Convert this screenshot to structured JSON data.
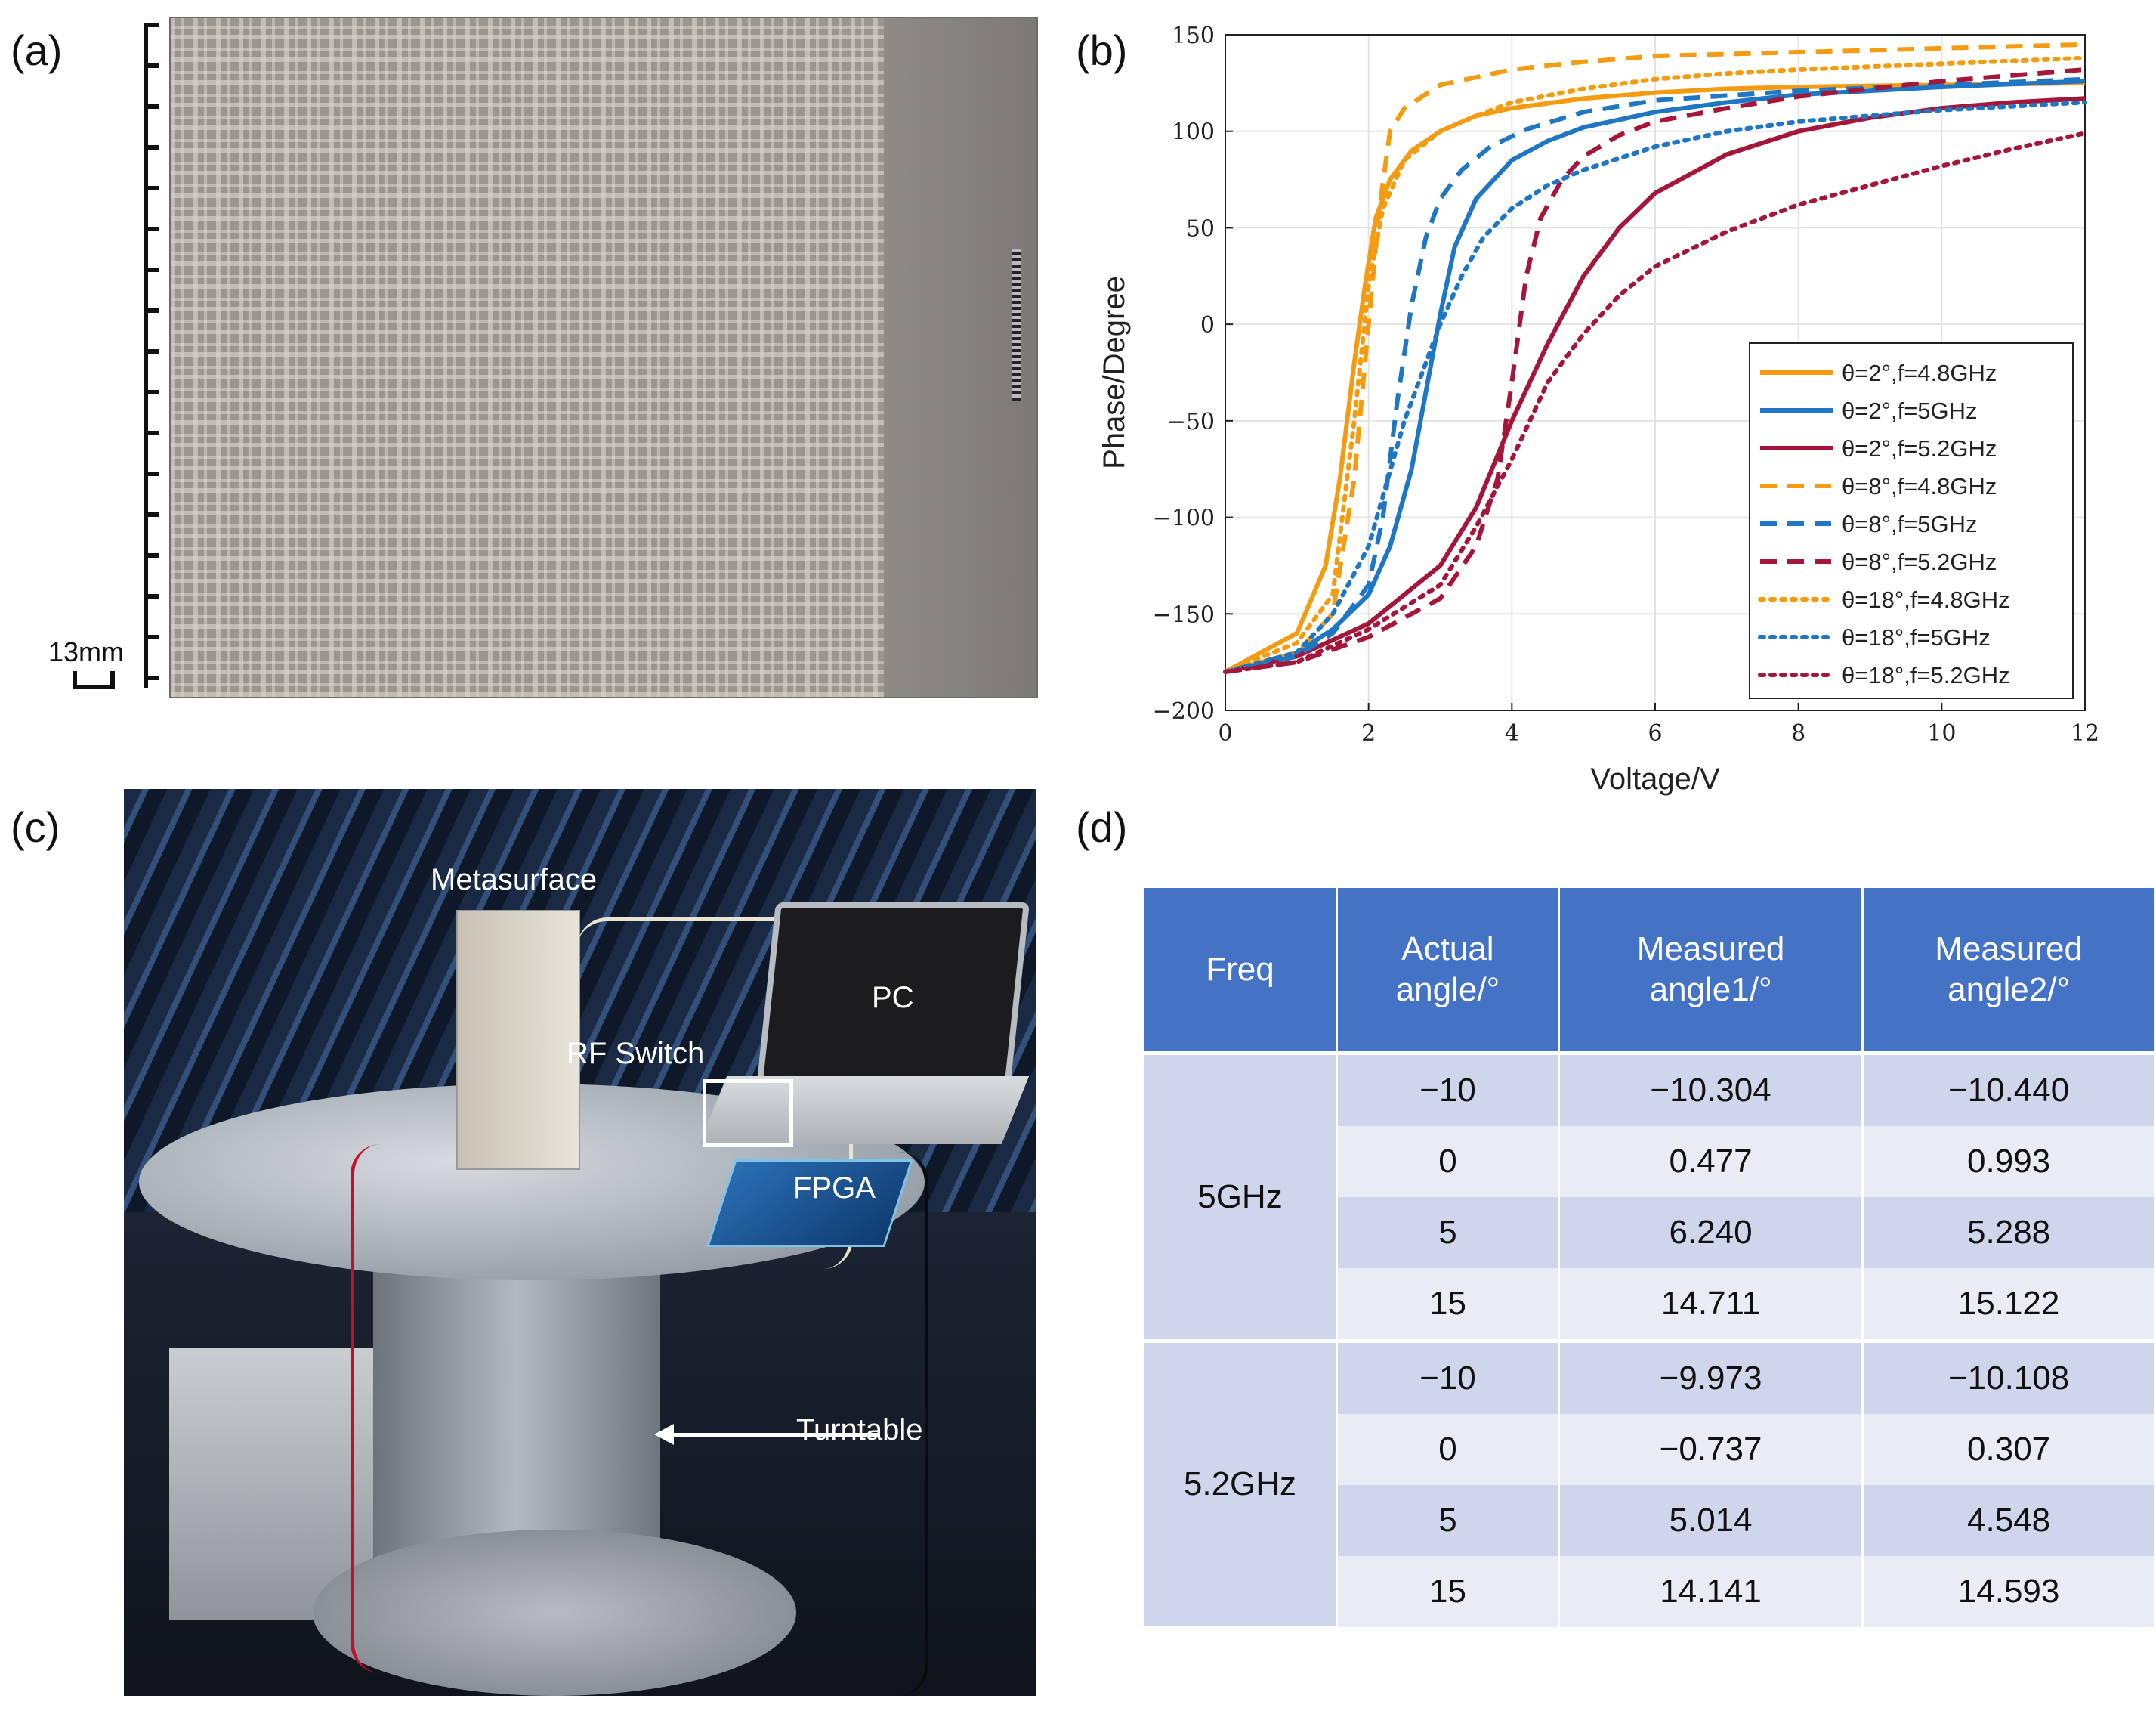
{
  "panel_labels": {
    "a": "(a)",
    "b": "(b)",
    "c": "(c)",
    "d": "(d)"
  },
  "panel_a": {
    "scale_label": "13mm"
  },
  "panel_c": {
    "labels": {
      "metasurface": "Metasurface",
      "pc": "PC",
      "rf_switch": "RF Switch",
      "fpga": "FPGA",
      "turntable": "Turntable"
    }
  },
  "panel_d": {
    "headers": [
      "Freq",
      "Actual angle/°",
      "Measured angle1/°",
      "Measured angle2/°"
    ],
    "header_lines": [
      [
        "Freq"
      ],
      [
        "Actual",
        "angle/°"
      ],
      [
        "Measured",
        "angle1/°"
      ],
      [
        "Measured",
        "angle2/°"
      ]
    ],
    "groups": [
      {
        "freq": "5GHz",
        "rows": [
          {
            "actual": "−10",
            "m1": "−10.304",
            "m2": "−10.440"
          },
          {
            "actual": "0",
            "m1": "0.477",
            "m2": "0.993"
          },
          {
            "actual": "5",
            "m1": "6.240",
            "m2": "5.288"
          },
          {
            "actual": "15",
            "m1": "14.711",
            "m2": "15.122"
          }
        ]
      },
      {
        "freq": "5.2GHz",
        "rows": [
          {
            "actual": "−10",
            "m1": "−9.973",
            "m2": "−10.108"
          },
          {
            "actual": "0",
            "m1": "−0.737",
            "m2": "0.307"
          },
          {
            "actual": "5",
            "m1": "5.014",
            "m2": "4.548"
          },
          {
            "actual": "15",
            "m1": "14.141",
            "m2": "14.593"
          }
        ]
      }
    ]
  },
  "chart_data": {
    "type": "line",
    "title": "",
    "xlabel": "Voltage/V",
    "ylabel": "Phase/Degree",
    "xlim": [
      0,
      12
    ],
    "ylim": [
      -200,
      150
    ],
    "xticks": [
      0,
      2,
      4,
      6,
      8,
      10,
      12
    ],
    "yticks": [
      -200,
      -150,
      -100,
      -50,
      0,
      50,
      100,
      150
    ],
    "ytick_labels": [
      "−200",
      "−150",
      "−100",
      "−50",
      "0",
      "50",
      "100",
      "150"
    ],
    "grid": true,
    "legend_position": "lower-right",
    "colors": {
      "orange": "#f39c12",
      "blue": "#1f77c4",
      "red": "#a4173a"
    },
    "series": [
      {
        "name": "θ=2°,f=4.8GHz",
        "color": "#f39c12",
        "dash": "solid",
        "x": [
          0,
          1,
          1.4,
          1.6,
          1.8,
          1.95,
          2.1,
          2.3,
          2.6,
          3,
          3.5,
          4,
          5,
          6,
          7,
          8,
          10,
          12
        ],
        "y": [
          -180,
          -160,
          -125,
          -80,
          -20,
          20,
          55,
          75,
          90,
          100,
          108,
          112,
          117,
          120,
          122,
          123,
          124,
          125
        ]
      },
      {
        "name": "θ=2°,f=5GHz",
        "color": "#1f77c4",
        "dash": "solid",
        "x": [
          0,
          1,
          1.5,
          2,
          2.3,
          2.6,
          2.8,
          3,
          3.2,
          3.5,
          4,
          4.5,
          5,
          6,
          7,
          8,
          10,
          12
        ],
        "y": [
          -180,
          -170,
          -158,
          -140,
          -115,
          -75,
          -35,
          5,
          40,
          65,
          85,
          95,
          102,
          110,
          115,
          119,
          123,
          126
        ]
      },
      {
        "name": "θ=2°,f=5.2GHz",
        "color": "#a4173a",
        "dash": "solid",
        "x": [
          0,
          1,
          2,
          3,
          3.5,
          4,
          4.5,
          5,
          5.5,
          6,
          7,
          8,
          9,
          10,
          11,
          12
        ],
        "y": [
          -180,
          -172,
          -155,
          -125,
          -95,
          -50,
          -10,
          25,
          50,
          68,
          88,
          100,
          107,
          112,
          115,
          117
        ]
      },
      {
        "name": "θ=8°,f=4.8GHz",
        "color": "#f39c12",
        "dash": "dashed",
        "x": [
          0,
          1,
          1.5,
          1.8,
          2.0,
          2.15,
          2.3,
          2.5,
          3,
          4,
          5,
          6,
          8,
          10,
          12
        ],
        "y": [
          -180,
          -170,
          -150,
          -80,
          0,
          60,
          100,
          112,
          124,
          132,
          136,
          139,
          141,
          143,
          145
        ]
      },
      {
        "name": "θ=8°,f=5GHz",
        "color": "#1f77c4",
        "dash": "dashed",
        "x": [
          0,
          1,
          1.5,
          2,
          2.2,
          2.4,
          2.6,
          2.8,
          3.0,
          3.3,
          3.7,
          4.2,
          5,
          6,
          8,
          10,
          12
        ],
        "y": [
          -180,
          -172,
          -160,
          -135,
          -100,
          -40,
          10,
          45,
          65,
          80,
          92,
          101,
          110,
          116,
          121,
          124,
          127
        ]
      },
      {
        "name": "θ=8°,f=5.2GHz",
        "color": "#a4173a",
        "dash": "dashed",
        "x": [
          0,
          1,
          2,
          3,
          3.5,
          3.8,
          4.0,
          4.2,
          4.4,
          4.7,
          5,
          5.5,
          6,
          7,
          8,
          10,
          12
        ],
        "y": [
          -180,
          -175,
          -162,
          -142,
          -115,
          -80,
          -30,
          25,
          55,
          75,
          87,
          98,
          105,
          112,
          118,
          126,
          132
        ]
      },
      {
        "name": "θ=18°,f=4.8GHz",
        "color": "#f39c12",
        "dash": "dotted",
        "x": [
          0,
          1,
          1.5,
          1.8,
          2.0,
          2.2,
          2.5,
          3,
          3.5,
          4,
          5,
          6,
          7,
          8,
          10,
          12
        ],
        "y": [
          -180,
          -165,
          -140,
          -50,
          20,
          60,
          85,
          100,
          108,
          115,
          122,
          127,
          130,
          132,
          135,
          138
        ]
      },
      {
        "name": "θ=18°,f=5GHz",
        "color": "#1f77c4",
        "dash": "dotted",
        "x": [
          0,
          1,
          1.5,
          2,
          2.5,
          3.0,
          3.3,
          3.6,
          4.0,
          4.5,
          5,
          6,
          7,
          8,
          10,
          12
        ],
        "y": [
          -180,
          -170,
          -150,
          -115,
          -50,
          0,
          25,
          45,
          60,
          72,
          80,
          92,
          100,
          105,
          111,
          115
        ]
      },
      {
        "name": "θ=18°,f=5.2GHz",
        "color": "#a4173a",
        "dash": "dotted",
        "x": [
          0,
          1,
          2,
          3,
          3.5,
          4,
          4.5,
          5,
          5.5,
          6,
          7,
          8,
          9,
          10,
          11,
          12
        ],
        "y": [
          -180,
          -175,
          -158,
          -135,
          -105,
          -70,
          -30,
          -5,
          15,
          30,
          48,
          62,
          72,
          82,
          91,
          99
        ]
      }
    ]
  }
}
